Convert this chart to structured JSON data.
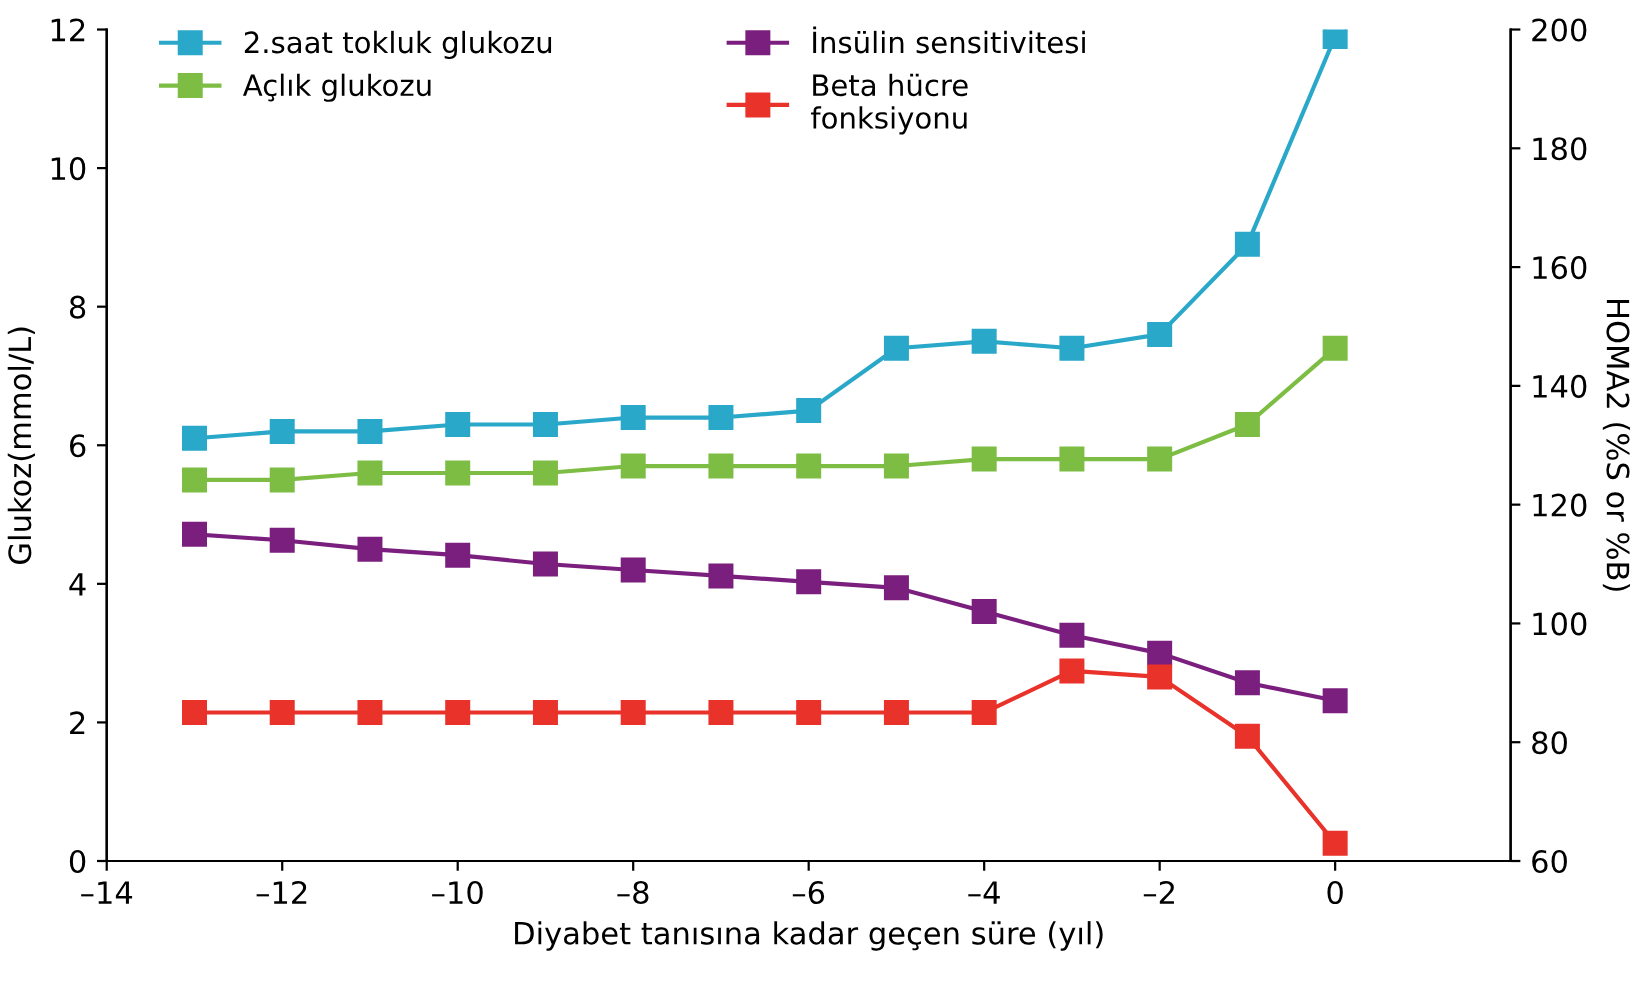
{
  "chart_data": {
    "type": "line",
    "xlabel": "Diyabet tanısına kadar geçen süre (yıl)",
    "ylabel": "Glukoz(mmol/L)",
    "y2label": "HOMA2 (%S or %B)",
    "x": [
      -13,
      -12,
      -11,
      -10,
      -9,
      -8,
      -7,
      -6,
      -5,
      -4,
      -3,
      -2,
      -1,
      0
    ],
    "series": [
      {
        "name": "2.saat tokluk glukozu",
        "color": "#2aa8c9",
        "values": [
          6.1,
          6.2,
          6.2,
          6.3,
          6.3,
          6.4,
          6.4,
          6.5,
          7.4,
          7.5,
          7.4,
          7.6,
          8.9,
          11.9
        ]
      },
      {
        "name": "Açlık glukozu",
        "color": "#7dbd44",
        "values": [
          5.5,
          5.5,
          5.6,
          5.6,
          5.6,
          5.7,
          5.7,
          5.7,
          5.7,
          5.8,
          5.8,
          5.8,
          6.3,
          7.4
        ]
      },
      {
        "name": "İnsülin sensitivitesi",
        "color": "#7b1f7f",
        "axis": "y2",
        "values": [
          115,
          114,
          112.5,
          111.5,
          110,
          109,
          108,
          107,
          106,
          102,
          98,
          95,
          90,
          87
        ]
      },
      {
        "name": "Beta hücre\nfonksiyonu",
        "color": "#e8322a",
        "axis": "y2",
        "values": [
          85,
          85,
          85,
          85,
          85,
          85,
          85,
          85,
          85,
          85,
          92,
          91,
          81,
          63
        ]
      }
    ],
    "xlim": [
      -14,
      2
    ],
    "xticks": [
      {
        "value": -14,
        "label": "–14"
      },
      {
        "value": -12,
        "label": "–12"
      },
      {
        "value": -10,
        "label": "–10"
      },
      {
        "value": -8,
        "label": "–8"
      },
      {
        "value": -6,
        "label": "–6"
      },
      {
        "value": -4,
        "label": "–4"
      },
      {
        "value": -2,
        "label": "–2"
      },
      0
    ],
    "ylim": [
      0,
      12
    ],
    "yticks": [
      0,
      2,
      4,
      6,
      8,
      10,
      12
    ],
    "y2lim": [
      60,
      200
    ],
    "y2ticks": [
      60,
      80,
      100,
      120,
      140,
      160,
      180,
      200
    ],
    "marker": "square",
    "line_style": "solid",
    "grid": false,
    "legend": "top left"
  }
}
